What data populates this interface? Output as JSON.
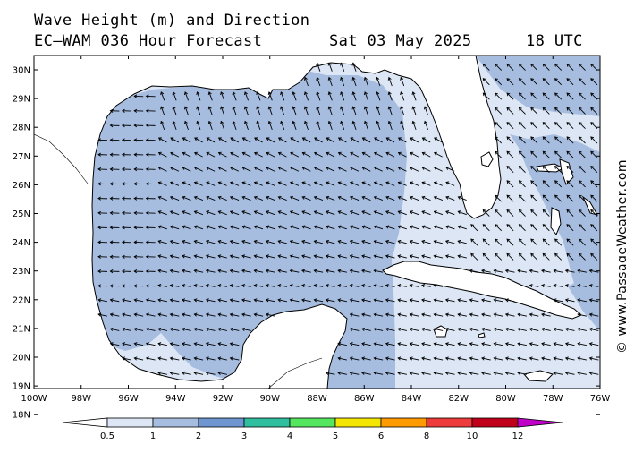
{
  "title": {
    "line1": "Wave Height (m) and Direction",
    "line2": "EC—WAM 036 Hour Forecast",
    "date": "Sat 03 May 2025",
    "time": "18 UTC"
  },
  "credit": "© www.PassageWeather.com",
  "map": {
    "lat_labels": [
      "30N",
      "29N",
      "28N",
      "27N",
      "26N",
      "25N",
      "24N",
      "23N",
      "22N",
      "21N",
      "20N",
      "19N",
      "18N"
    ],
    "lon_labels": [
      "100W",
      "98W",
      "96W",
      "94W",
      "92W",
      "90W",
      "88W",
      "86W",
      "84W",
      "82W",
      "80W",
      "78W",
      "76W"
    ],
    "land_color": "#ffffff",
    "coast_color": "#000000",
    "arrow_color": "#000000",
    "dominant_arrow_direction": "toward the west-northwest in the Gulf, toward the northwest off Florida and in the Caribbean"
  },
  "legend": {
    "labels": [
      "0.5",
      "1",
      "2",
      "3",
      "4",
      "5",
      "6",
      "8",
      "10",
      "12"
    ],
    "colors": [
      "#ffffff",
      "#dce6f4",
      "#a6bde0",
      "#6e96d1",
      "#2fbf9f",
      "#55e65f",
      "#f4e600",
      "#ff9a00",
      "#ee3b3b",
      "#c0001a",
      "#c000c8"
    ]
  }
}
